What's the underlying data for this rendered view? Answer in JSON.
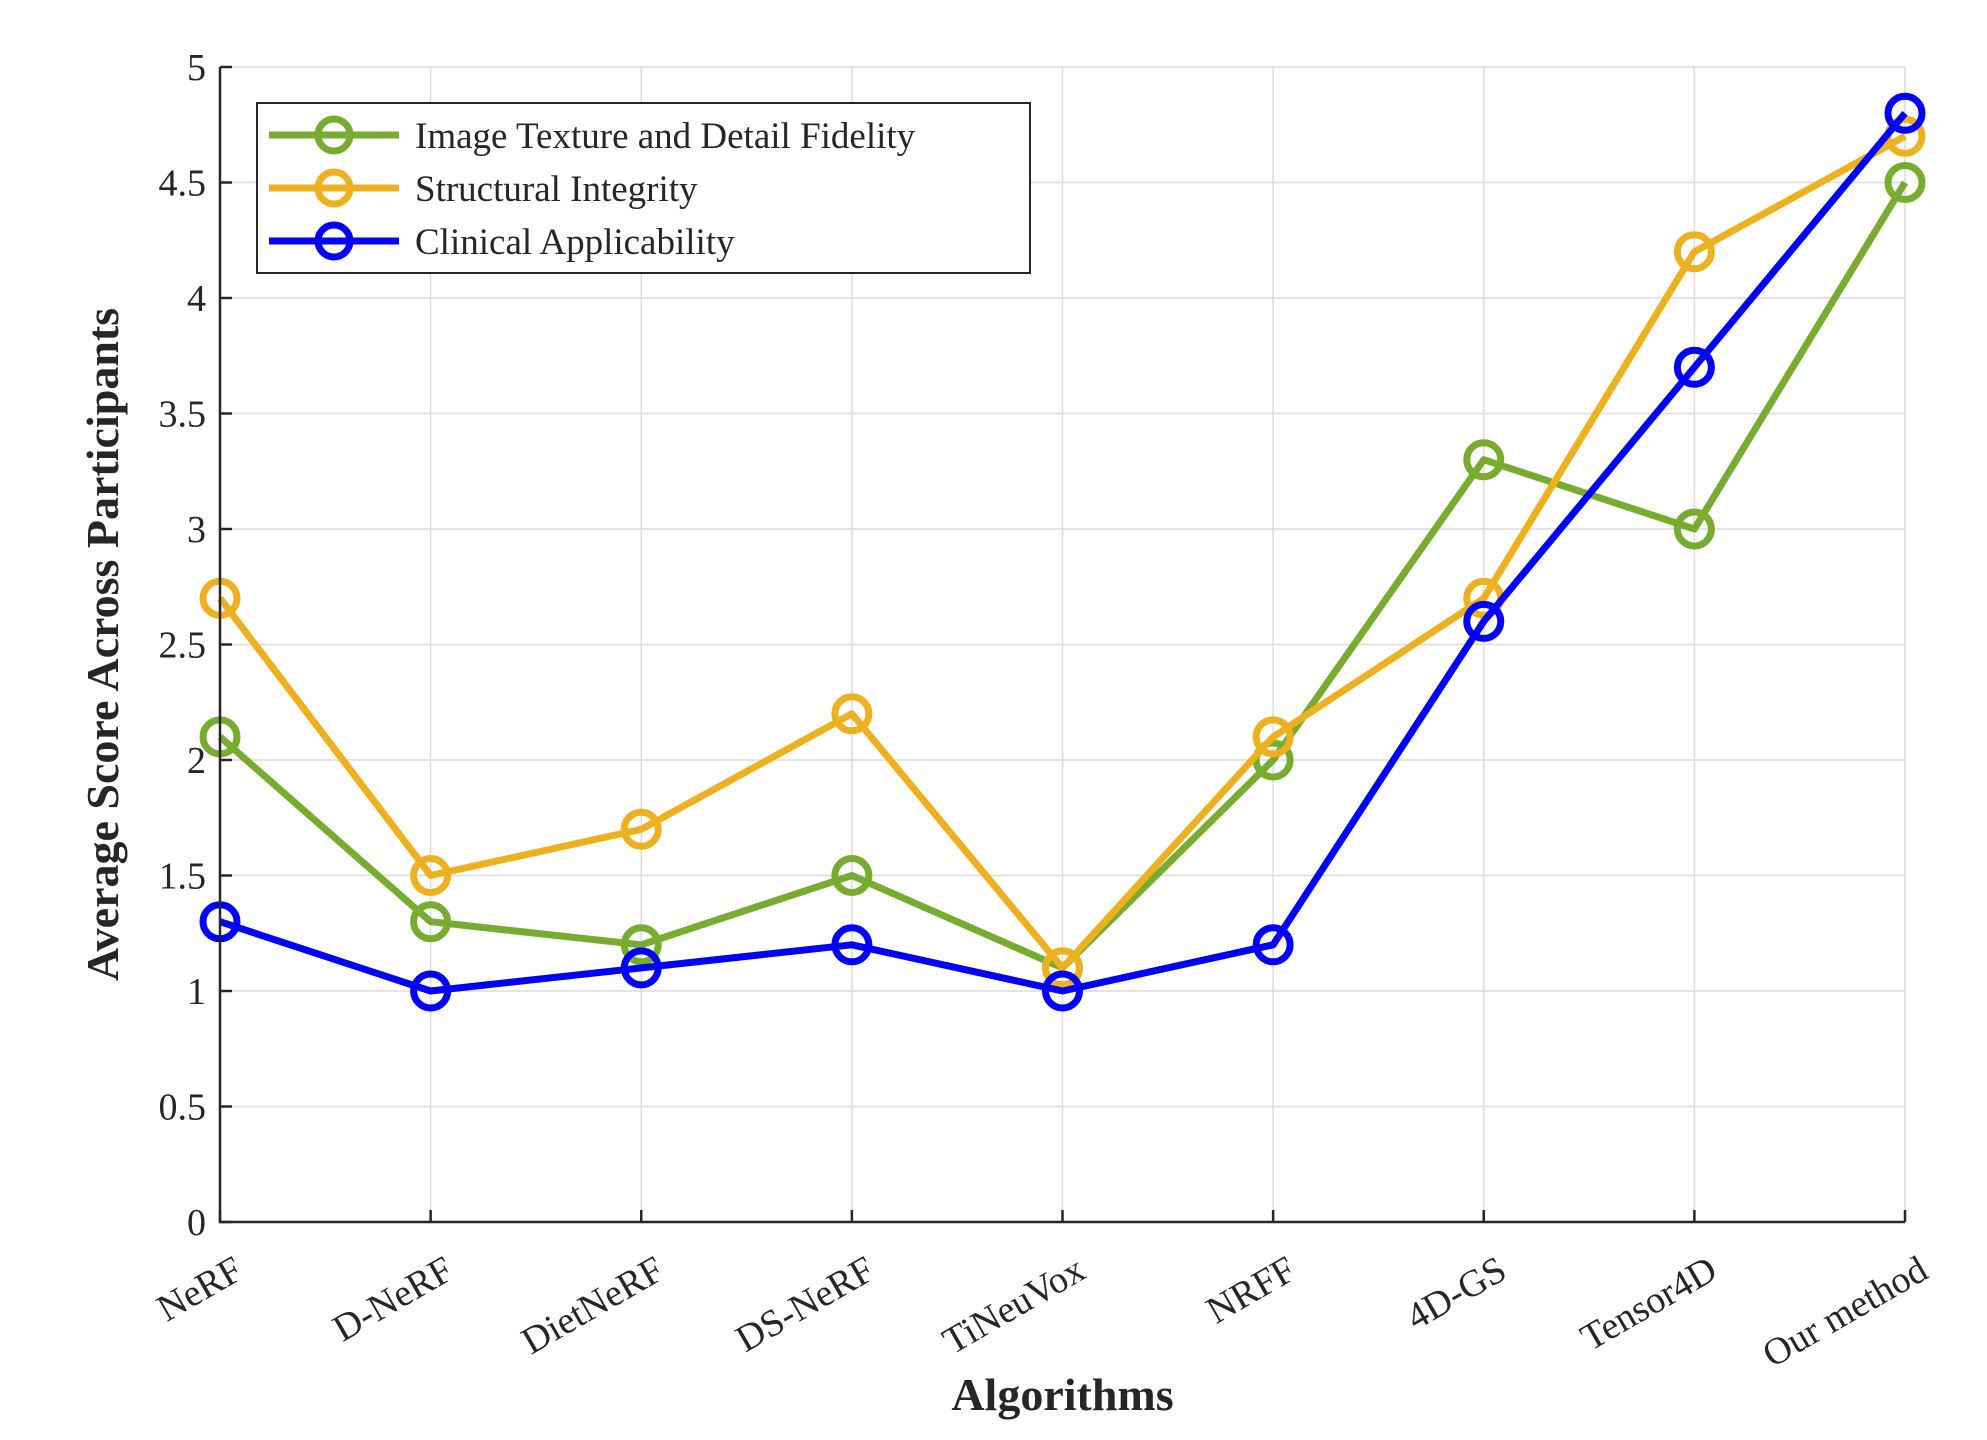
{
  "chart_data": {
    "type": "line",
    "title": "",
    "xlabel": "Algorithms",
    "ylabel": "Average Score Across Participants",
    "categories": [
      "NeRF",
      "D-NeRF",
      "DietNeRF",
      "DS-NeRF",
      "TiNeuVox",
      "NRFF",
      "4D-GS",
      "Tensor4D",
      "Our method"
    ],
    "ylim": [
      0,
      5
    ],
    "yticks": [
      "0",
      "0.5",
      "1",
      "1.5",
      "2",
      "2.5",
      "3",
      "3.5",
      "4",
      "4.5",
      "5"
    ],
    "grid": true,
    "legend_position": "top-left",
    "series": [
      {
        "name": "Image Texture and Detail Fidelity",
        "color": "#77AC30",
        "values": [
          2.1,
          1.3,
          1.2,
          1.5,
          1.1,
          2.0,
          3.3,
          3.0,
          4.5
        ]
      },
      {
        "name": "Structural Integrity",
        "color": "#EDB120",
        "values": [
          2.7,
          1.5,
          1.7,
          2.2,
          1.1,
          2.1,
          2.7,
          4.2,
          4.7
        ]
      },
      {
        "name": "Clinical Applicability",
        "color": "#0000FF",
        "values": [
          1.3,
          1.0,
          1.1,
          1.2,
          1.0,
          1.2,
          2.6,
          3.7,
          4.8
        ]
      }
    ]
  }
}
